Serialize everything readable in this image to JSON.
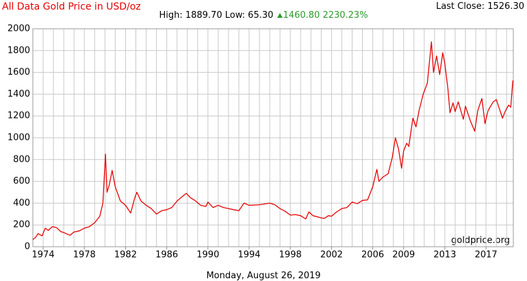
{
  "chart_data": {
    "type": "line",
    "title": "All Data Gold Price in USD/oz",
    "stats": {
      "high_label": "High:",
      "high": "1889.70",
      "low_label": "Low:",
      "low": "65.30",
      "change": "1460.80",
      "change_pct": "2230.23%"
    },
    "last_close_label": "Last Close:",
    "last_close": "1526.30",
    "watermark": "goldprice.org",
    "date": "Monday, August 26, 2019",
    "x": [
      1973.0,
      1973.3,
      1973.5,
      1973.9,
      1974.2,
      1974.5,
      1974.9,
      1975.3,
      1975.7,
      1976.0,
      1976.6,
      1977.0,
      1977.5,
      1978.0,
      1978.5,
      1979.0,
      1979.5,
      1979.8,
      1980.05,
      1980.2,
      1980.4,
      1980.7,
      1981.0,
      1981.5,
      1982.0,
      1982.5,
      1982.9,
      1983.1,
      1983.5,
      1984.0,
      1984.5,
      1985.0,
      1985.5,
      1986.0,
      1986.5,
      1987.0,
      1987.5,
      1987.9,
      1988.3,
      1988.8,
      1989.3,
      1989.8,
      1990.0,
      1990.5,
      1991.0,
      1991.5,
      1992.0,
      1992.5,
      1993.0,
      1993.5,
      1994.0,
      1995.0,
      1996.0,
      1996.5,
      1997.0,
      1997.5,
      1998.0,
      1998.5,
      1999.0,
      1999.5,
      1999.8,
      2000.2,
      2001.0,
      2001.3,
      2001.7,
      2002.0,
      2002.5,
      2003.0,
      2003.5,
      2004.0,
      2004.5,
      2005.0,
      2005.5,
      2006.0,
      2006.4,
      2006.6,
      2007.0,
      2007.5,
      2007.9,
      2008.2,
      2008.5,
      2008.8,
      2009.0,
      2009.3,
      2009.5,
      2009.9,
      2010.2,
      2010.5,
      2010.9,
      2011.3,
      2011.7,
      2011.9,
      2012.2,
      2012.5,
      2012.8,
      2013.0,
      2013.3,
      2013.5,
      2013.8,
      2014.0,
      2014.3,
      2014.8,
      2015.0,
      2015.5,
      2015.9,
      2016.2,
      2016.6,
      2016.9,
      2017.2,
      2017.7,
      2018.0,
      2018.6,
      2018.9,
      2019.2,
      2019.4,
      2019.6,
      2019.65
    ],
    "series": [
      {
        "name": "Gold",
        "color": "#e60000",
        "values": [
          65,
          90,
          120,
          100,
          170,
          150,
          185,
          175,
          140,
          130,
          105,
          135,
          145,
          170,
          185,
          220,
          280,
          400,
          850,
          500,
          560,
          700,
          550,
          420,
          380,
          310,
          450,
          500,
          420,
          380,
          350,
          300,
          330,
          340,
          360,
          420,
          460,
          490,
          450,
          420,
          380,
          370,
          410,
          360,
          380,
          360,
          350,
          340,
          330,
          400,
          380,
          385,
          400,
          385,
          350,
          325,
          290,
          295,
          285,
          255,
          320,
          285,
          265,
          260,
          285,
          280,
          320,
          350,
          360,
          410,
          395,
          425,
          430,
          550,
          710,
          600,
          640,
          670,
          820,
          1000,
          900,
          720,
          880,
          950,
          920,
          1180,
          1100,
          1250,
          1400,
          1500,
          1880,
          1600,
          1750,
          1580,
          1780,
          1680,
          1450,
          1230,
          1320,
          1240,
          1330,
          1170,
          1290,
          1150,
          1060,
          1250,
          1360,
          1130,
          1250,
          1330,
          1350,
          1180,
          1250,
          1300,
          1280,
          1520,
          1526.3
        ]
      }
    ],
    "xlim": [
      1973,
      2019.65
    ],
    "xticks": [
      1974,
      1978,
      1982,
      1986,
      1990,
      1994,
      1998,
      2002,
      2006,
      2009,
      2013,
      2017
    ],
    "xgrid": [
      1973,
      1974,
      1975,
      1976,
      1977,
      1978,
      1979,
      1980,
      1981,
      1982,
      1983,
      1984,
      1985,
      1986,
      1987,
      1988,
      1989,
      1990,
      1991,
      1992,
      1993,
      1994,
      1995,
      1996,
      1997,
      1998,
      1999,
      2000,
      2001,
      2002,
      2003,
      2004,
      2005,
      2006,
      2007,
      2008,
      2009,
      2010,
      2011,
      2012,
      2013,
      2014,
      2015,
      2016,
      2017,
      2018,
      2019
    ],
    "ylim": [
      0,
      2000
    ],
    "yticks": [
      0,
      200,
      400,
      600,
      800,
      1000,
      1200,
      1400,
      1600,
      1800,
      2000
    ],
    "grid": true
  }
}
